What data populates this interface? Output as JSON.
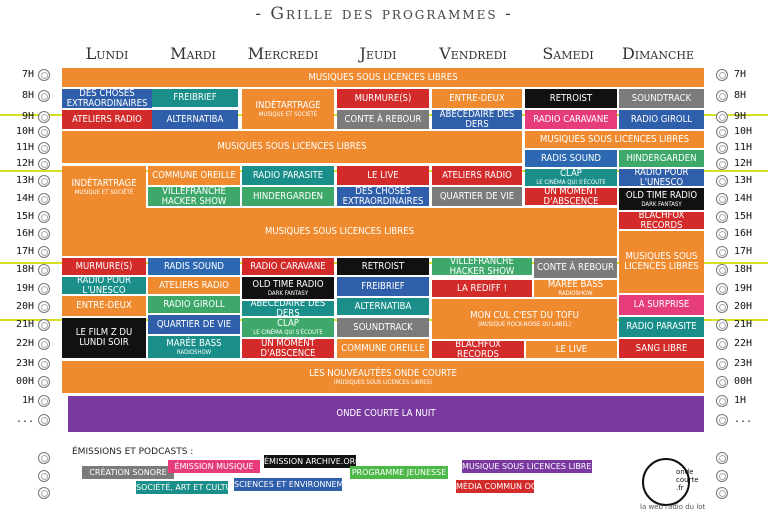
{
  "title": "- Grille des programmes -",
  "days": [
    "Lundi",
    "Mardi",
    "Mercredi",
    "Jeudi",
    "Vendredi",
    "Samedi",
    "Dimanche"
  ],
  "hours": [
    "7H",
    "8H",
    "9H",
    "10H",
    "11H",
    "12H",
    "13H",
    "14H",
    "15H",
    "16H",
    "17H",
    "18H",
    "19H",
    "20H",
    "21H",
    "22H",
    "23H",
    "00H",
    "1H",
    "..."
  ],
  "blocks": {
    "b01": "Musiques sous licences libres",
    "b02": "Des choses extraordinaires",
    "b03": "FREIbrief",
    "b04": "Indétartrage",
    "b04s": "musique et société",
    "b05": "Murmure(s)",
    "b06": "Entre-deux",
    "b07": "Retroist",
    "b08": "Soundtrack",
    "b09": "Ateliers radio",
    "b10": "Alternatiba",
    "b11": "Conte à rebour",
    "b12": "Abécédaire des ders",
    "b13": "Radio caravane",
    "b14": "Radio Giroll",
    "b15": "Musiques sous licences libres",
    "b16": "Musiques sous licences libres",
    "b17": "Radis sound",
    "b18": "Hindergarden",
    "b19": "Indétartrage",
    "b19s": "musique et société",
    "b20": "Commune Oreille",
    "b21": "Radio parasite",
    "b22": "Le Live",
    "b23": "Ateliers radio",
    "b24": "CLAP",
    "b24s": "le cinéma qui s'écoute",
    "b25": "Radio pour l'Unesco",
    "b26": "Villefranche Hacker Show",
    "b27": "Hindergarden",
    "b28": "Des choses extraordinaires",
    "b29": "Quartier de vie",
    "b30": "Un moment d'abscence",
    "b31": "Old time radio",
    "b31s": "dark fantasy",
    "b32": "Blachfox records",
    "b33": "Musiques sous licences libres",
    "b34": "Musiques sous licences libres",
    "b35": "Murmure(s)",
    "b36": "Radis sound",
    "b37": "Radio caravane",
    "b38": "Retroist",
    "b39": "Villefranche Hacker Show",
    "b40": "Conte à rebour",
    "b41": "Radio pour l'Unesco",
    "b42": "Ateliers radio",
    "b43": "Old time radio",
    "b43s": "dark fantasy",
    "b44": "Freibrief",
    "b45": "La rediff !",
    "b46": "Marée Bass",
    "b46s": "radioshow",
    "b47": "Entre-deux",
    "b48": "Radio Giroll",
    "b49": "Abécédaire des ders",
    "b50": "Alternatiba",
    "b51": "Mon cul c'est du tofu",
    "b51s": "(musique rock-noise du label)",
    "b52": "La surprise",
    "b53": "Le film Z du lundi soir",
    "b54": "Quartier de vie",
    "b55": "CLAP",
    "b55s": "le cinéma qui s'écoute",
    "b56": "Soundtrack",
    "b57": "Radio parasite",
    "b58": "Marée Bass",
    "b58s": "radioshow",
    "b59": "Un moment d'abscence",
    "b60": "Commune Oreille",
    "b61": "Blachfox records",
    "b62": "Le Live",
    "b63": "Sang libre",
    "b64": "Les nouveautées onde courte",
    "b64s": "(musiques sous licences libres)",
    "b65": "Onde courte la nuit"
  },
  "legend": {
    "title": "Émissions et podcasts :",
    "items": [
      "Création sonore",
      "Émission musique",
      "Émission archive.org",
      "Programme jeunesse",
      "Musique sous licences libres",
      "Société, art et culture",
      "Sciences et environnement",
      "Média commun OC"
    ]
  },
  "logo": {
    "text": "onde courte .fr",
    "sub": "la web radio du lot"
  }
}
